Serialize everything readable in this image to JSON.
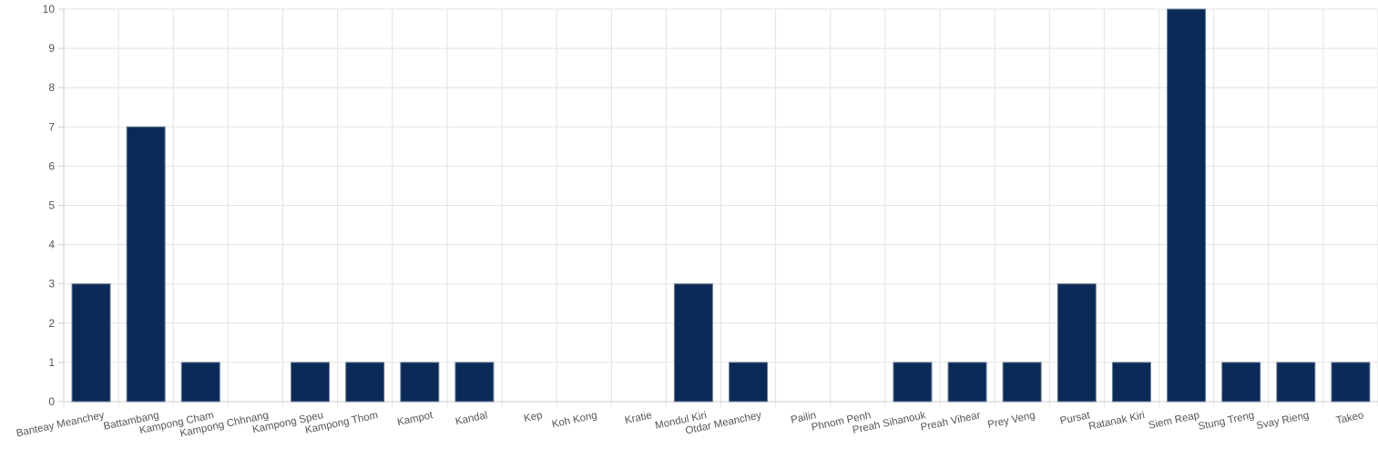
{
  "colors": {
    "bar": "#0b2a57",
    "bar_border": "#6c7f99",
    "grid": "#e2e2e2",
    "text": "#555555"
  },
  "chart_data": {
    "type": "bar",
    "categories": [
      "Banteay Meanchey",
      "Battambang",
      "Kampong Cham",
      "Kampong Chhnang",
      "Kampong Speu",
      "Kampong Thom",
      "Kampot",
      "Kandal",
      "Kep",
      "Koh Kong",
      "Kratie",
      "Mondul Kiri",
      "Otdar Meanchey",
      "Pailin",
      "Phnom Penh",
      "Preah Sihanouk",
      "Preah Vihear",
      "Prey Veng",
      "Pursat",
      "Ratanak Kiri",
      "Siem Reap",
      "Stung Treng",
      "Svay Rieng",
      "Takeo"
    ],
    "values": [
      3,
      7,
      1,
      0,
      1,
      1,
      1,
      1,
      0,
      0,
      0,
      3,
      1,
      0,
      0,
      1,
      1,
      1,
      3,
      1,
      10,
      1,
      1,
      1
    ],
    "yticks": [
      "0",
      "1",
      "2",
      "3",
      "4",
      "5",
      "6",
      "7",
      "8",
      "9",
      "10"
    ],
    "ylim": [
      0,
      10
    ],
    "grid": true,
    "legend": "none"
  }
}
